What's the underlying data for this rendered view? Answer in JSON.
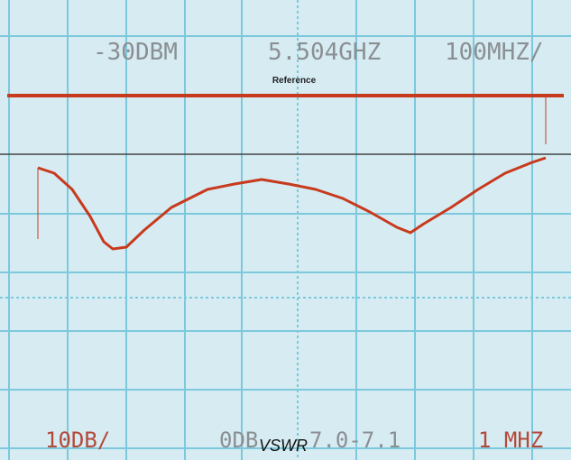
{
  "display": {
    "top_labels": [
      "-30DBM",
      "5.504GHZ",
      "100MHZ/"
    ],
    "reference_label": "Reference",
    "bottom_labels": [
      "10DB/",
      "0DB",
      "7.0-7.1",
      "1 MHZ"
    ],
    "caption": "VSWR"
  }
}
